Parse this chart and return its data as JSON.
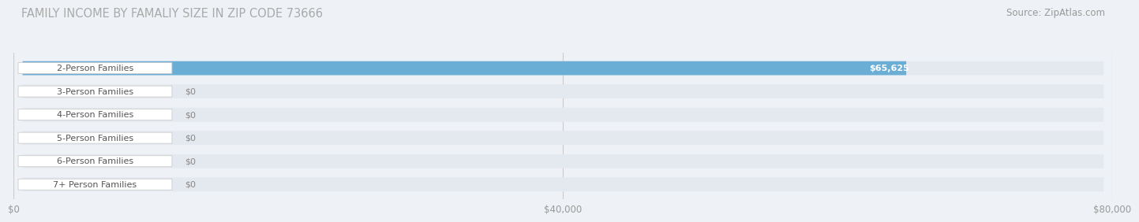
{
  "title": "FAMILY INCOME BY FAMALIY SIZE IN ZIP CODE 73666",
  "source": "Source: ZipAtlas.com",
  "categories": [
    "2-Person Families",
    "3-Person Families",
    "4-Person Families",
    "5-Person Families",
    "6-Person Families",
    "7+ Person Families"
  ],
  "values": [
    65625,
    0,
    0,
    0,
    0,
    0
  ],
  "bar_colors": [
    "#6aaed6",
    "#c4a8d4",
    "#6dbfb8",
    "#b0b0e0",
    "#f4a0b0",
    "#f5c990"
  ],
  "value_labels": [
    "$65,625",
    "$0",
    "$0",
    "$0",
    "$0",
    "$0"
  ],
  "xlim": [
    0,
    80000
  ],
  "xticks": [
    0,
    40000,
    80000
  ],
  "xtick_labels": [
    "$0",
    "$40,000",
    "$80,000"
  ],
  "background_color": "#eef1f5",
  "bar_bg_color": "#e4e8ef",
  "title_color": "#aaaaaa",
  "title_fontsize": 10.5,
  "source_fontsize": 8.5,
  "label_fontsize": 8.0,
  "value_fontsize": 8.0,
  "bar_height": 0.6
}
